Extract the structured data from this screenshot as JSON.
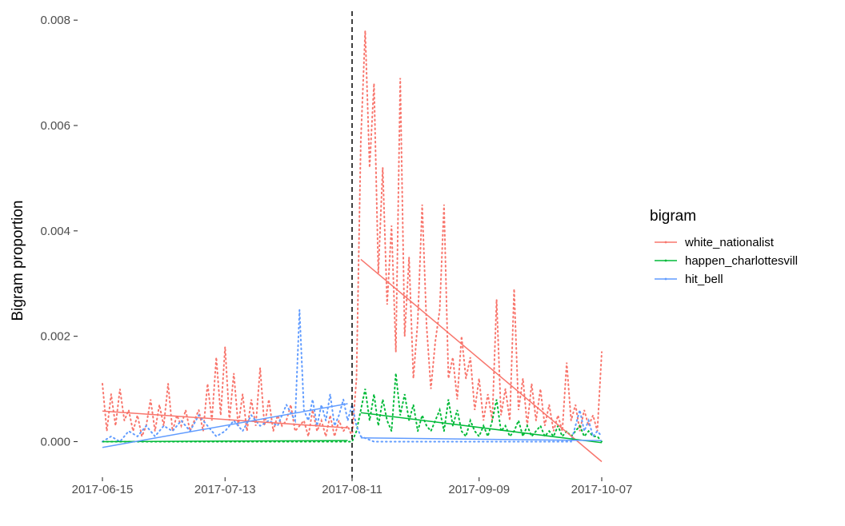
{
  "chart_data": {
    "type": "line",
    "title": "",
    "xlabel": "",
    "ylabel": "Bigram proportion",
    "x_ticks": [
      "2017-06-15",
      "2017-07-13",
      "2017-08-11",
      "2017-09-09",
      "2017-10-07"
    ],
    "y_ticks": [
      "0.000",
      "0.002",
      "0.004",
      "0.006",
      "0.008"
    ],
    "xlim": [
      "2017-06-15",
      "2017-10-07"
    ],
    "ylim": [
      -0.0006,
      0.0082
    ],
    "grid": false,
    "legend": {
      "title": "bigram",
      "position": "right"
    },
    "reference_line": {
      "x": "2017-08-11",
      "style": "dashed",
      "color": "#000000"
    },
    "series": [
      {
        "name": "white_nationalist",
        "color": "#F8766D",
        "daily": [
          [
            "2017-06-15",
            0.0011
          ],
          [
            "2017-06-16",
            0.0002
          ],
          [
            "2017-06-17",
            0.0009
          ],
          [
            "2017-06-18",
            0.0003
          ],
          [
            "2017-06-19",
            0.001
          ],
          [
            "2017-06-20",
            0.0004
          ],
          [
            "2017-06-21",
            0.0006
          ],
          [
            "2017-06-22",
            0.0002
          ],
          [
            "2017-06-23",
            0.0005
          ],
          [
            "2017-06-24",
            0.0001
          ],
          [
            "2017-06-25",
            0.0003
          ],
          [
            "2017-06-26",
            0.0008
          ],
          [
            "2017-06-27",
            0.0002
          ],
          [
            "2017-06-28",
            0.0007
          ],
          [
            "2017-06-29",
            0.0003
          ],
          [
            "2017-06-30",
            0.0011
          ],
          [
            "2017-07-01",
            0.0002
          ],
          [
            "2017-07-02",
            0.0005
          ],
          [
            "2017-07-03",
            0.0003
          ],
          [
            "2017-07-04",
            0.0006
          ],
          [
            "2017-07-05",
            0.0002
          ],
          [
            "2017-07-06",
            0.0004
          ],
          [
            "2017-07-07",
            0.0006
          ],
          [
            "2017-07-08",
            0.0002
          ],
          [
            "2017-07-09",
            0.0011
          ],
          [
            "2017-07-10",
            0.0004
          ],
          [
            "2017-07-11",
            0.0016
          ],
          [
            "2017-07-12",
            0.0005
          ],
          [
            "2017-07-13",
            0.0018
          ],
          [
            "2017-07-14",
            0.0004
          ],
          [
            "2017-07-15",
            0.0013
          ],
          [
            "2017-07-16",
            0.0003
          ],
          [
            "2017-07-17",
            0.0009
          ],
          [
            "2017-07-18",
            0.0002
          ],
          [
            "2017-07-19",
            0.0008
          ],
          [
            "2017-07-20",
            0.0003
          ],
          [
            "2017-07-21",
            0.0014
          ],
          [
            "2017-07-22",
            0.0003
          ],
          [
            "2017-07-23",
            0.0008
          ],
          [
            "2017-07-24",
            0.0002
          ],
          [
            "2017-07-25",
            0.0005
          ],
          [
            "2017-07-26",
            0.0003
          ],
          [
            "2017-07-27",
            0.0004
          ],
          [
            "2017-07-28",
            0.0007
          ],
          [
            "2017-07-29",
            0.0002
          ],
          [
            "2017-07-30",
            0.0003
          ],
          [
            "2017-07-31",
            0.0004
          ],
          [
            "2017-08-01",
            0.0001
          ],
          [
            "2017-08-02",
            0.0006
          ],
          [
            "2017-08-03",
            0.0002
          ],
          [
            "2017-08-04",
            0.0004
          ],
          [
            "2017-08-05",
            0.0001
          ],
          [
            "2017-08-06",
            0.0005
          ],
          [
            "2017-08-07",
            0.0001
          ],
          [
            "2017-08-08",
            0.0004
          ],
          [
            "2017-08-09",
            0.0002
          ],
          [
            "2017-08-10",
            0.0003
          ],
          [
            "2017-08-11",
            0.0001
          ],
          [
            "2017-08-12",
            0.0012
          ],
          [
            "2017-08-13",
            0.0057
          ],
          [
            "2017-08-14",
            0.0078
          ],
          [
            "2017-08-15",
            0.0052
          ],
          [
            "2017-08-16",
            0.0068
          ],
          [
            "2017-08-17",
            0.0032
          ],
          [
            "2017-08-18",
            0.0052
          ],
          [
            "2017-08-19",
            0.0026
          ],
          [
            "2017-08-20",
            0.0041
          ],
          [
            "2017-08-21",
            0.0017
          ],
          [
            "2017-08-22",
            0.0069
          ],
          [
            "2017-08-23",
            0.002
          ],
          [
            "2017-08-24",
            0.0035
          ],
          [
            "2017-08-25",
            0.0012
          ],
          [
            "2017-08-26",
            0.0023
          ],
          [
            "2017-08-27",
            0.0045
          ],
          [
            "2017-08-28",
            0.0022
          ],
          [
            "2017-08-29",
            0.001
          ],
          [
            "2017-08-30",
            0.0019
          ],
          [
            "2017-08-31",
            0.0025
          ],
          [
            "2017-09-01",
            0.0045
          ],
          [
            "2017-09-02",
            0.0012
          ],
          [
            "2017-09-03",
            0.0016
          ],
          [
            "2017-09-04",
            0.0008
          ],
          [
            "2017-09-05",
            0.002
          ],
          [
            "2017-09-06",
            0.0012
          ],
          [
            "2017-09-07",
            0.0016
          ],
          [
            "2017-09-08",
            0.0006
          ],
          [
            "2017-09-09",
            0.0012
          ],
          [
            "2017-09-10",
            0.0004
          ],
          [
            "2017-09-11",
            0.0009
          ],
          [
            "2017-09-12",
            0.0004
          ],
          [
            "2017-09-13",
            0.0027
          ],
          [
            "2017-09-14",
            0.0005
          ],
          [
            "2017-09-15",
            0.001
          ],
          [
            "2017-09-16",
            0.0004
          ],
          [
            "2017-09-17",
            0.0029
          ],
          [
            "2017-09-18",
            0.0006
          ],
          [
            "2017-09-19",
            0.0012
          ],
          [
            "2017-09-20",
            0.0003
          ],
          [
            "2017-09-21",
            0.0011
          ],
          [
            "2017-09-22",
            0.0004
          ],
          [
            "2017-09-23",
            0.001
          ],
          [
            "2017-09-24",
            0.0003
          ],
          [
            "2017-09-25",
            0.0007
          ],
          [
            "2017-09-26",
            0.0002
          ],
          [
            "2017-09-27",
            0.0005
          ],
          [
            "2017-09-28",
            0.0002
          ],
          [
            "2017-09-29",
            0.0015
          ],
          [
            "2017-09-30",
            0.0004
          ],
          [
            "2017-10-01",
            0.0007
          ],
          [
            "2017-10-02",
            0.0002
          ],
          [
            "2017-10-03",
            0.0006
          ],
          [
            "2017-10-04",
            0.0003
          ],
          [
            "2017-10-05",
            0.0005
          ],
          [
            "2017-10-06",
            0.0002
          ],
          [
            "2017-10-07",
            0.0017
          ]
        ],
        "trend_before": [
          [
            "2017-06-15",
            0.00058
          ],
          [
            "2017-08-10",
            0.00026
          ]
        ],
        "trend_after": [
          [
            "2017-08-13",
            0.00346
          ],
          [
            "2017-10-07",
            -0.00038
          ]
        ]
      },
      {
        "name": "happen_charlottesvill",
        "color": "#00BA38",
        "daily": [
          [
            "2017-06-15",
            0.0
          ],
          [
            "2017-06-20",
            0.0
          ],
          [
            "2017-06-25",
            0.0
          ],
          [
            "2017-06-30",
            0.0
          ],
          [
            "2017-07-05",
            0.0
          ],
          [
            "2017-07-10",
            0.0
          ],
          [
            "2017-07-15",
            0.0
          ],
          [
            "2017-07-20",
            0.0
          ],
          [
            "2017-07-25",
            0.0
          ],
          [
            "2017-07-30",
            0.0
          ],
          [
            "2017-08-04",
            0.0
          ],
          [
            "2017-08-09",
            0.0
          ],
          [
            "2017-08-11",
            0.0
          ],
          [
            "2017-08-12",
            0.0002
          ],
          [
            "2017-08-13",
            0.0006
          ],
          [
            "2017-08-14",
            0.001
          ],
          [
            "2017-08-15",
            0.0004
          ],
          [
            "2017-08-16",
            0.0009
          ],
          [
            "2017-08-17",
            0.0003
          ],
          [
            "2017-08-18",
            0.0008
          ],
          [
            "2017-08-19",
            0.0004
          ],
          [
            "2017-08-20",
            0.0002
          ],
          [
            "2017-08-21",
            0.0013
          ],
          [
            "2017-08-22",
            0.0005
          ],
          [
            "2017-08-23",
            0.0009
          ],
          [
            "2017-08-24",
            0.0004
          ],
          [
            "2017-08-25",
            0.0007
          ],
          [
            "2017-08-26",
            0.0002
          ],
          [
            "2017-08-27",
            0.0005
          ],
          [
            "2017-08-28",
            0.0003
          ],
          [
            "2017-08-29",
            0.0002
          ],
          [
            "2017-08-30",
            0.0004
          ],
          [
            "2017-08-31",
            0.0006
          ],
          [
            "2017-09-01",
            0.0002
          ],
          [
            "2017-09-02",
            0.0008
          ],
          [
            "2017-09-03",
            0.0003
          ],
          [
            "2017-09-04",
            0.0006
          ],
          [
            "2017-09-05",
            0.0002
          ],
          [
            "2017-09-06",
            0.0001
          ],
          [
            "2017-09-07",
            0.0004
          ],
          [
            "2017-09-08",
            0.0002
          ],
          [
            "2017-09-09",
            0.0001
          ],
          [
            "2017-09-10",
            0.0003
          ],
          [
            "2017-09-11",
            0.0001
          ],
          [
            "2017-09-12",
            0.0004
          ],
          [
            "2017-09-13",
            0.0008
          ],
          [
            "2017-09-14",
            0.0002
          ],
          [
            "2017-09-15",
            0.0003
          ],
          [
            "2017-09-16",
            0.0001
          ],
          [
            "2017-09-17",
            0.0002
          ],
          [
            "2017-09-18",
            0.0004
          ],
          [
            "2017-09-19",
            0.0001
          ],
          [
            "2017-09-20",
            0.0003
          ],
          [
            "2017-09-21",
            0.0001
          ],
          [
            "2017-09-22",
            0.0002
          ],
          [
            "2017-09-23",
            0.0003
          ],
          [
            "2017-09-24",
            0.0001
          ],
          [
            "2017-09-25",
            0.0002
          ],
          [
            "2017-09-26",
            0.0001
          ],
          [
            "2017-09-27",
            0.0003
          ],
          [
            "2017-09-28",
            0.0001
          ],
          [
            "2017-09-29",
            0.0002
          ],
          [
            "2017-09-30",
            0.0001
          ],
          [
            "2017-10-01",
            0.0002
          ],
          [
            "2017-10-02",
            0.0003
          ],
          [
            "2017-10-03",
            0.0001
          ],
          [
            "2017-10-04",
            0.0002
          ],
          [
            "2017-10-05",
            0.0001
          ],
          [
            "2017-10-06",
            0.0001
          ],
          [
            "2017-10-07",
            0.0
          ]
        ],
        "trend_before": [
          [
            "2017-06-15",
            0.0
          ],
          [
            "2017-08-10",
            2e-05
          ]
        ],
        "trend_after": [
          [
            "2017-08-13",
            0.00055
          ],
          [
            "2017-10-07",
            -2e-05
          ]
        ]
      },
      {
        "name": "hit_bell",
        "color": "#619CFF",
        "daily": [
          [
            "2017-06-15",
            0.0
          ],
          [
            "2017-06-17",
            0.0001
          ],
          [
            "2017-06-19",
            0.0
          ],
          [
            "2017-06-21",
            0.0002
          ],
          [
            "2017-06-23",
            0.0001
          ],
          [
            "2017-06-25",
            0.0003
          ],
          [
            "2017-06-27",
            0.0001
          ],
          [
            "2017-06-29",
            0.0003
          ],
          [
            "2017-07-01",
            0.0002
          ],
          [
            "2017-07-03",
            0.0004
          ],
          [
            "2017-07-05",
            0.0002
          ],
          [
            "2017-07-07",
            0.0005
          ],
          [
            "2017-07-09",
            0.0003
          ],
          [
            "2017-07-11",
            0.0001
          ],
          [
            "2017-07-13",
            0.0002
          ],
          [
            "2017-07-15",
            0.0004
          ],
          [
            "2017-07-17",
            0.0002
          ],
          [
            "2017-07-19",
            0.0005
          ],
          [
            "2017-07-21",
            0.0003
          ],
          [
            "2017-07-23",
            0.0004
          ],
          [
            "2017-07-25",
            0.0003
          ],
          [
            "2017-07-27",
            0.0007
          ],
          [
            "2017-07-29",
            0.0004
          ],
          [
            "2017-07-30",
            0.0025
          ],
          [
            "2017-07-31",
            0.0006
          ],
          [
            "2017-08-01",
            0.0004
          ],
          [
            "2017-08-02",
            0.0008
          ],
          [
            "2017-08-03",
            0.0003
          ],
          [
            "2017-08-04",
            0.0007
          ],
          [
            "2017-08-05",
            0.0004
          ],
          [
            "2017-08-06",
            0.0009
          ],
          [
            "2017-08-07",
            0.0003
          ],
          [
            "2017-08-08",
            0.0005
          ],
          [
            "2017-08-09",
            0.0008
          ],
          [
            "2017-08-10",
            0.0004
          ],
          [
            "2017-08-11",
            0.0007
          ],
          [
            "2017-08-12",
            0.0003
          ],
          [
            "2017-08-13",
            0.0001
          ],
          [
            "2017-08-16",
            0.0
          ],
          [
            "2017-08-20",
            0.0
          ],
          [
            "2017-08-25",
            0.0
          ],
          [
            "2017-08-30",
            0.0
          ],
          [
            "2017-09-05",
            0.0
          ],
          [
            "2017-09-10",
            0.0
          ],
          [
            "2017-09-15",
            0.0
          ],
          [
            "2017-09-20",
            0.0
          ],
          [
            "2017-09-25",
            0.0
          ],
          [
            "2017-09-30",
            0.0
          ],
          [
            "2017-10-02",
            0.0006
          ],
          [
            "2017-10-03",
            0.0002
          ],
          [
            "2017-10-04",
            0.0004
          ],
          [
            "2017-10-05",
            0.0001
          ],
          [
            "2017-10-06",
            0.0002
          ],
          [
            "2017-10-07",
            0.0001
          ]
        ],
        "trend_before": [
          [
            "2017-06-15",
            -0.00011
          ],
          [
            "2017-08-10",
            0.00072
          ]
        ],
        "trend_after": [
          [
            "2017-08-13",
            7e-05
          ],
          [
            "2017-10-07",
            2e-05
          ]
        ]
      }
    ]
  }
}
